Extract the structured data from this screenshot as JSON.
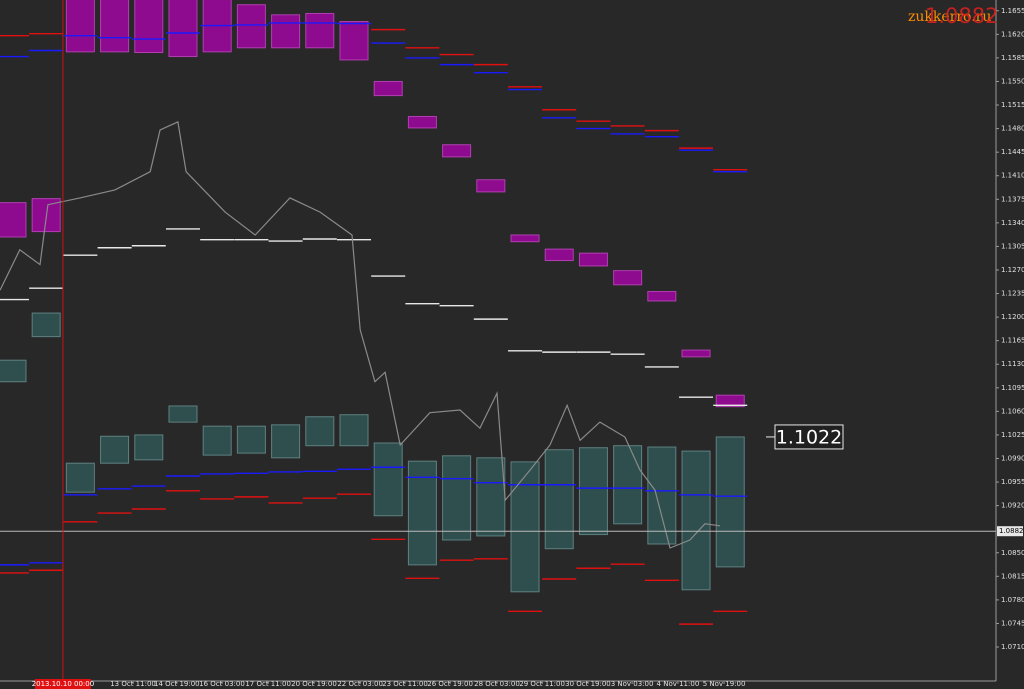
{
  "chart_data": {
    "type": "box",
    "watermark": "zukkerro.ru",
    "current_price": 1.0882,
    "price_label": 1.1022,
    "marker": {
      "x": 1.49,
      "label": "2013.10.10 00:00"
    },
    "xlim": [
      -0.35,
      28.77
    ],
    "ylim": [
      1.0661,
      1.1671
    ],
    "yticks": [
      1.1655,
      {
        "value": 1.162,
        "label": "1.1620"
      },
      1.1585,
      {
        "value": 1.155,
        "label": "1.1550"
      },
      1.1515,
      {
        "value": 1.148,
        "label": "1.1480"
      },
      1.1445,
      {
        "value": 1.141,
        "label": "1.1410"
      },
      1.1375,
      {
        "value": 1.134,
        "label": "1.1340"
      },
      1.1305,
      {
        "value": 1.127,
        "label": "1.1270"
      },
      1.1235,
      {
        "value": 1.12,
        "label": "1.1200"
      },
      1.1165,
      {
        "value": 1.113,
        "label": "1.1130"
      },
      1.1095,
      {
        "value": 1.106,
        "label": "1.1060"
      },
      1.1025,
      {
        "value": 1.099,
        "label": "1.0990"
      },
      1.0955,
      {
        "value": 1.092,
        "label": "1.0920"
      },
      {
        "value": 1.085,
        "label": "1.0850"
      },
      1.0815,
      {
        "value": 1.078,
        "label": "1.0780"
      },
      1.0745,
      {
        "value": 1.071,
        "label": "1.0710"
      }
    ],
    "xticks": [
      {
        "value": 3.54,
        "label": "13 Oct 11:00"
      },
      {
        "value": 4.82,
        "label": "14 Oct 19:00"
      },
      {
        "value": 6.14,
        "label": "16 Oct 03:00"
      },
      {
        "value": 7.49,
        "label": "17 Oct 11:00"
      },
      {
        "value": 8.83,
        "label": "20 Oct 19:00"
      },
      {
        "value": 10.18,
        "label": "22 Oct 03:00"
      },
      {
        "value": 11.49,
        "label": "23 Oct 11:00"
      },
      {
        "value": 12.81,
        "label": "26 Oct 19:00"
      },
      {
        "value": 14.18,
        "label": "28 Oct 03:00"
      },
      {
        "value": 15.5,
        "label": "29 Oct 11:00"
      },
      {
        "value": 16.84,
        "label": "30 Oct 19:00"
      },
      {
        "value": 18.13,
        "label": "3 Nov 03:00"
      },
      {
        "value": 19.47,
        "label": "4 Nov 11:00"
      },
      {
        "value": 20.82,
        "label": "5 Nov 19:00"
      }
    ],
    "upper_zone": {
      "color": "#8e0a8e",
      "top": [
        1.137,
        1.1376,
        1.1675,
        1.1675,
        1.1675,
        1.1675,
        1.1675,
        1.1664,
        1.1649,
        1.1651,
        1.1639,
        1.155,
        1.1498,
        1.1456,
        1.1404,
        1.1322,
        1.1301,
        1.1295,
        1.1269,
        1.1238,
        1.1151,
        1.1084
      ],
      "bottom": [
        1.1319,
        1.1327,
        1.1594,
        1.1594,
        1.1593,
        1.1587,
        1.1594,
        1.16,
        1.16,
        1.16,
        1.1582,
        1.1529,
        1.1481,
        1.1438,
        1.1386,
        1.1312,
        1.1284,
        1.1276,
        1.1248,
        1.1224,
        1.1141,
        1.1067
      ]
    },
    "lower_zone": {
      "color": "#2f4f4f",
      "top": [
        1.1136,
        1.1206,
        1.0983,
        1.1023,
        1.1025,
        1.1068,
        1.1038,
        1.1038,
        1.104,
        1.1052,
        1.1055,
        1.1013,
        1.0986,
        1.0994,
        1.0991,
        1.0985,
        1.1003,
        1.1006,
        1.1009,
        1.1007,
        1.1001,
        1.1022
      ],
      "bottom": [
        1.1104,
        1.1171,
        1.094,
        1.0983,
        1.0988,
        1.1044,
        1.0995,
        1.0998,
        1.0991,
        1.1009,
        1.1009,
        1.0905,
        1.0832,
        1.0869,
        1.0875,
        1.0792,
        1.0856,
        1.0877,
        1.0893,
        1.0863,
        1.0795,
        1.0829
      ]
    },
    "levels": [
      {
        "color": "#1a1aff",
        "values": [
          1.0832,
          1.0835,
          1.0936,
          1.0945,
          1.0949,
          1.0964,
          1.0967,
          1.0968,
          1.097,
          1.0971,
          1.0974,
          1.0977,
          1.0962,
          1.096,
          1.0954,
          1.0951,
          1.0951,
          1.0946,
          1.0946,
          1.0942,
          1.0936,
          1.0934
        ]
      },
      {
        "color": "#1a1aff",
        "values": [
          1.1587,
          1.1596,
          1.1618,
          1.1615,
          1.1613,
          1.1622,
          1.1633,
          1.1634,
          1.1637,
          1.1637,
          1.1636,
          1.1607,
          1.1585,
          1.1575,
          1.1563,
          1.1538,
          1.1496,
          1.148,
          1.1472,
          1.1468,
          1.1448,
          1.1416
        ]
      },
      {
        "color": "#e01010",
        "values": [
          1.082,
          1.0824,
          1.0896,
          1.0909,
          1.0915,
          1.0942,
          1.093,
          1.0933,
          1.0924,
          1.0931,
          1.0937,
          1.087,
          1.0812,
          1.0839,
          1.0841,
          1.0763,
          1.0811,
          1.0827,
          1.0833,
          1.0809,
          1.0744,
          1.0763
        ]
      },
      {
        "color": "#e01010",
        "values": [
          1.1618,
          1.1621,
          null,
          null,
          null,
          null,
          null,
          null,
          null,
          null,
          null,
          1.1627,
          1.16,
          1.159,
          1.1575,
          1.1542,
          1.1508,
          1.1491,
          1.1484,
          1.1477,
          1.1451,
          1.1419
        ]
      },
      {
        "color": "#e8e8e8",
        "values": [
          1.1226,
          1.1243,
          1.1292,
          1.1303,
          1.1306,
          1.1331,
          1.1315,
          1.1315,
          1.1313,
          1.1316,
          1.1315,
          1.1261,
          1.122,
          1.1217,
          1.1197,
          1.115,
          1.1148,
          1.1148,
          1.1145,
          1.1126,
          1.1081,
          1.1069
        ]
      }
    ],
    "price": {
      "color": "#8a8a8a",
      "x": [
        -0.35,
        0.23,
        0.82,
        1.05,
        1.99,
        3.01,
        4.04,
        4.33,
        4.85,
        5.09,
        6.23,
        7.11,
        8.13,
        9.01,
        9.94,
        10.18,
        10.61,
        10.91,
        11.35,
        12.22,
        13.1,
        13.68,
        14.18,
        14.42,
        15.15,
        15.73,
        16.23,
        16.61,
        17.19,
        17.92,
        18.36,
        18.8,
        19.24,
        19.82,
        20.26,
        20.7
      ],
      "y": [
        1.124,
        1.13,
        1.1278,
        1.1367,
        1.1377,
        1.1389,
        1.1416,
        1.1478,
        1.149,
        1.1416,
        1.1356,
        1.1322,
        1.1377,
        1.1356,
        1.1322,
        1.1181,
        1.1104,
        1.1118,
        1.101,
        1.1058,
        1.1062,
        1.1035,
        1.1087,
        1.0928,
        1.0973,
        1.101,
        1.1069,
        1.1017,
        1.1044,
        1.1022,
        1.0973,
        1.0943,
        1.0857,
        1.0869,
        1.0893,
        1.089
      ]
    }
  }
}
